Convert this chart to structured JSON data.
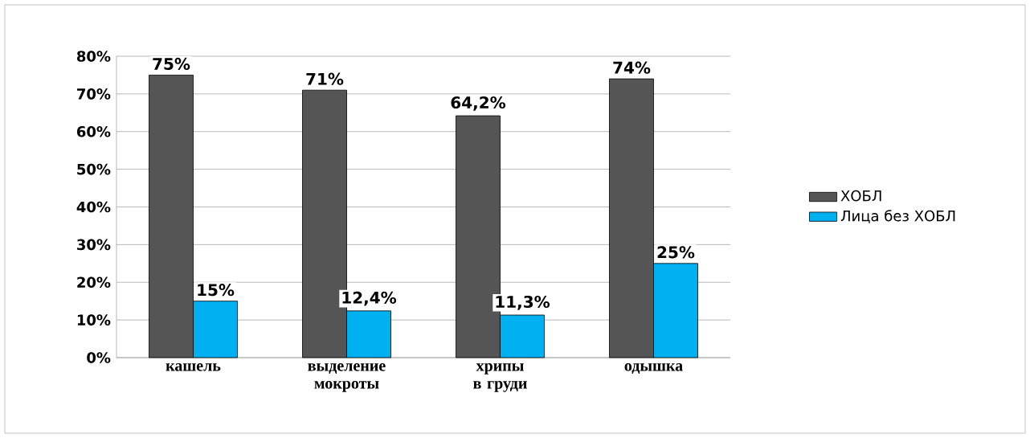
{
  "chart_data": {
    "type": "bar",
    "categories": [
      "кашель",
      "выделение мокроты",
      "хрипы в груди",
      "одышка"
    ],
    "series": [
      {
        "name": "ХОБЛ",
        "color": "#555555",
        "values": [
          75,
          71,
          64.2,
          74
        ],
        "value_labels": [
          "75%",
          "71%",
          "64,2%",
          "74%"
        ]
      },
      {
        "name": "Лица без ХОБЛ",
        "color": "#00b0f0",
        "values": [
          15,
          12.4,
          11.3,
          25
        ],
        "value_labels": [
          "15%",
          "12,4%",
          "11,3%",
          "25%"
        ]
      }
    ],
    "ylim": [
      0,
      80
    ],
    "yticks": [
      {
        "value": 0,
        "label": "0%"
      },
      {
        "value": 10,
        "label": "10%"
      },
      {
        "value": 20,
        "label": "20%"
      },
      {
        "value": 30,
        "label": "30%"
      },
      {
        "value": 40,
        "label": "40%"
      },
      {
        "value": 50,
        "label": "50%"
      },
      {
        "value": 60,
        "label": "60%"
      },
      {
        "value": 70,
        "label": "70%"
      },
      {
        "value": 80,
        "label": "80%"
      }
    ],
    "grid": "y",
    "legend": "right"
  }
}
